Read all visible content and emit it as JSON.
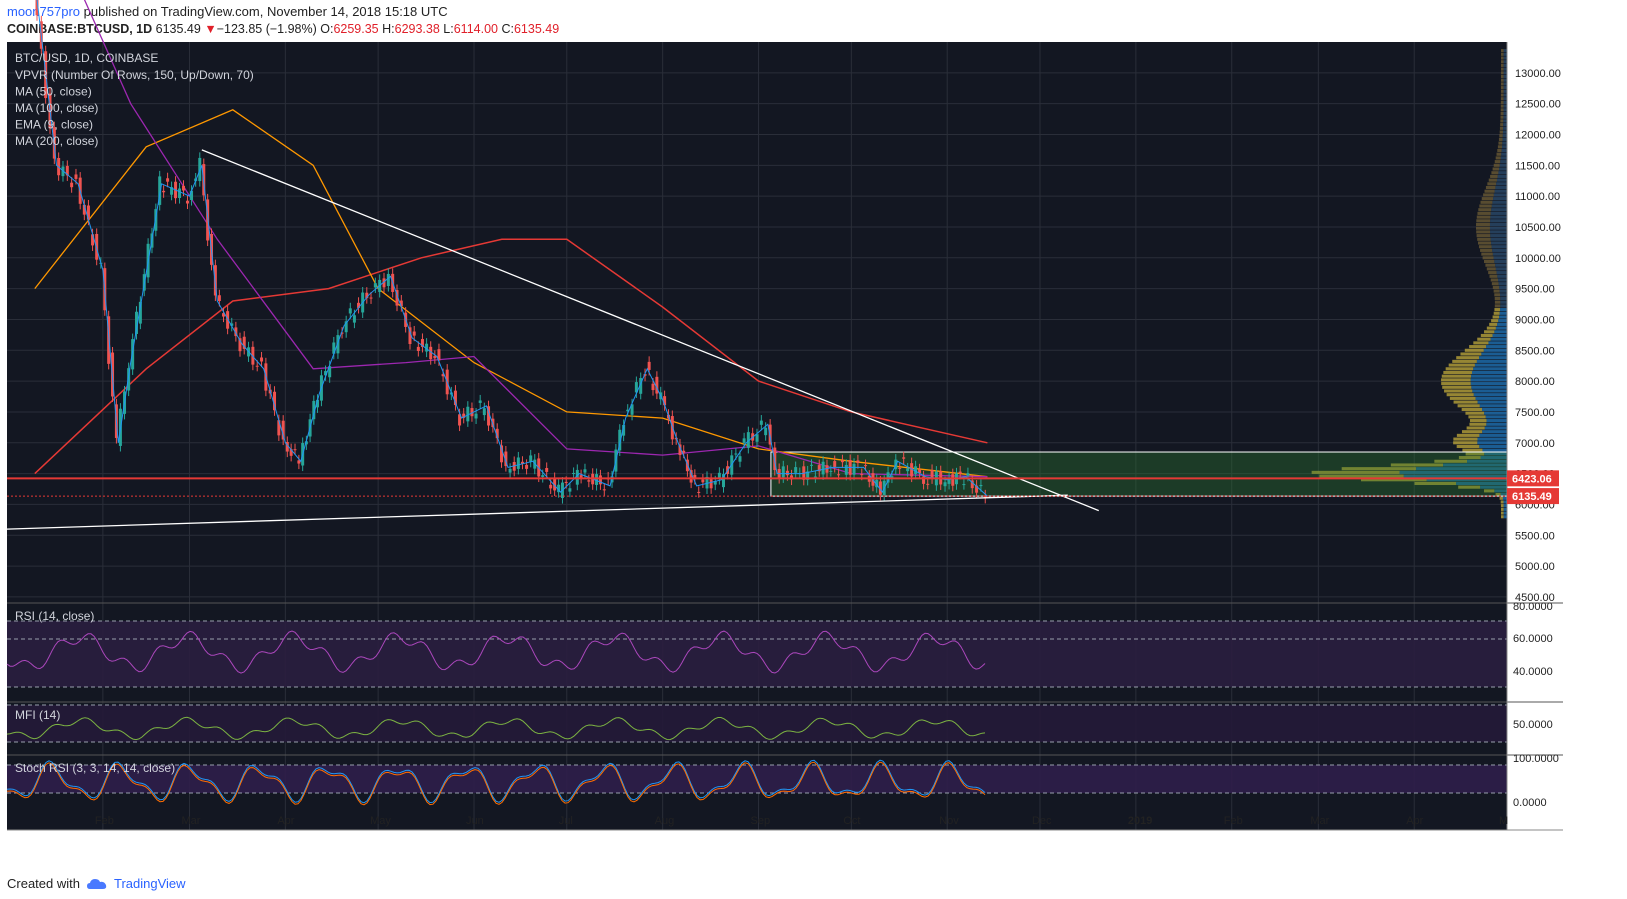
{
  "header": {
    "author": "moon757pro",
    "published_text": "published on TradingView.com, November 14, 2018 15:18 UTC",
    "symbol": "COINBASE:BTCUSD, 1D",
    "last": "6135.49",
    "change_arrow": "▼",
    "change": "−123.85 (−1.98%)",
    "o_label": "O:",
    "o_value": "6259.35",
    "h_label": "H:",
    "h_value": "6293.38",
    "l_label": "L:",
    "l_value": "6114.00",
    "c_label": "C:",
    "c_value": "6135.49"
  },
  "footer": {
    "created_with": "Created with",
    "brand": "TradingView",
    "logo_icon": "tradingview-cloud-icon"
  },
  "colors": {
    "background": "#131722",
    "grid": "#2a2e39",
    "up": "#26a69a",
    "down": "#ef5350",
    "ma50": "#2196f3",
    "ma100": "#ff9800",
    "ema9": "#2196f3",
    "ma200": "#e53935",
    "ma50_line": "#9c27b0"
  },
  "chart_data": {
    "type": "line",
    "title": "BTC/USD, 1D, COINBASE",
    "indicators": [
      "VPVR (Number Of Rows, 150, Up/Down, 70)",
      "MA (50, close)",
      "MA (100, close)",
      "EMA (9, close)",
      "MA (200, close)"
    ],
    "x_ticks": [
      "Feb",
      "Mar",
      "Apr",
      "May",
      "Jun",
      "Jul",
      "Aug",
      "Sep",
      "Oct",
      "Nov",
      "Dec",
      "2019",
      "Feb",
      "Mar",
      "Apr",
      "M"
    ],
    "y_ticks": [
      "13000.00",
      "12500.00",
      "12000.00",
      "11500.00",
      "11000.00",
      "10500.00",
      "10000.00",
      "9500.00",
      "9000.00",
      "8500.00",
      "8000.00",
      "7500.00",
      "7000.00",
      "6500.00",
      "6000.00",
      "5500.00",
      "5000.00",
      "4500.00"
    ],
    "ylim": [
      4450,
      13500
    ],
    "price_labels": [
      {
        "value": 6423.06,
        "text": "6423.06"
      },
      {
        "value": 6135.49,
        "text": "6135.49"
      }
    ],
    "price_series": {
      "name": "BTCUSD close (approx.)",
      "x": [
        "2018-01-10",
        "2018-01-17",
        "2018-01-24",
        "2018-02-01",
        "2018-02-06",
        "2018-02-10",
        "2018-02-20",
        "2018-03-01",
        "2018-03-05",
        "2018-03-10",
        "2018-03-18",
        "2018-03-25",
        "2018-04-01",
        "2018-04-06",
        "2018-04-12",
        "2018-04-20",
        "2018-04-28",
        "2018-05-05",
        "2018-05-12",
        "2018-05-20",
        "2018-05-28",
        "2018-06-05",
        "2018-06-12",
        "2018-06-20",
        "2018-06-29",
        "2018-07-05",
        "2018-07-15",
        "2018-07-20",
        "2018-07-27",
        "2018-08-01",
        "2018-08-06",
        "2018-08-12",
        "2018-08-20",
        "2018-08-28",
        "2018-09-04",
        "2018-09-07",
        "2018-09-15",
        "2018-09-25",
        "2018-10-05",
        "2018-10-11",
        "2018-10-16",
        "2018-10-25",
        "2018-11-01",
        "2018-11-07",
        "2018-11-14"
      ],
      "values": [
        14500,
        11500,
        11200,
        9800,
        7000,
        8300,
        11200,
        11000,
        11500,
        9300,
        8600,
        8200,
        7000,
        6700,
        7800,
        8900,
        9400,
        9700,
        8700,
        8400,
        7400,
        7600,
        6600,
        6700,
        6200,
        6500,
        6300,
        7400,
        8200,
        7700,
        7000,
        6300,
        6400,
        7000,
        7300,
        6500,
        6500,
        6600,
        6600,
        6200,
        6700,
        6450,
        6400,
        6450,
        6135
      ]
    },
    "ma200_series": {
      "name": "MA (200, close)",
      "x": [
        "2018-01-10",
        "2018-02-15",
        "2018-03-15",
        "2018-04-15",
        "2018-05-15",
        "2018-06-10",
        "2018-07-01",
        "2018-08-01",
        "2018-09-01",
        "2018-10-01",
        "2018-11-14"
      ],
      "values": [
        6500,
        8200,
        9300,
        9500,
        10000,
        10300,
        10300,
        9200,
        8000,
        7500,
        7000
      ]
    },
    "ma100_series": {
      "name": "MA (100, close)",
      "x": [
        "2018-01-10",
        "2018-02-15",
        "2018-03-15",
        "2018-04-10",
        "2018-05-01",
        "2018-06-01",
        "2018-07-01",
        "2018-08-01",
        "2018-09-01",
        "2018-10-01",
        "2018-11-14"
      ],
      "values": [
        9500,
        11800,
        12400,
        11500,
        9500,
        8300,
        7500,
        7400,
        6900,
        6700,
        6450
      ]
    },
    "ma50_series": {
      "name": "MA (50, close)",
      "x": [
        "2018-01-10",
        "2018-02-10",
        "2018-03-10",
        "2018-04-10",
        "2018-05-10",
        "2018-06-01",
        "2018-07-01",
        "2018-08-01",
        "2018-09-01",
        "2018-10-01",
        "2018-11-14"
      ],
      "values": [
        16000,
        12500,
        10300,
        8200,
        8300,
        8400,
        6900,
        6800,
        6950,
        6500,
        6450
      ]
    },
    "trendlines": [
      {
        "from": [
          "2018-03-05",
          11750
        ],
        "to": [
          "2018-12-20",
          5900
        ]
      },
      {
        "from": [
          "2018-01-01",
          5600
        ],
        "to": [
          "2018-12-10",
          6150
        ]
      }
    ],
    "range_box": {
      "from": "2018-09-05",
      "to": "2019-05-01",
      "low": 6135,
      "high": 6850
    },
    "rsi": {
      "label": "RSI (14, close)",
      "ticks": [
        "80.0000",
        "60.0000",
        "40.0000"
      ]
    },
    "mfi": {
      "label": "MFI (14)",
      "ticks": [
        "50.0000"
      ]
    },
    "stoch": {
      "label": "Stoch RSI (3, 3, 14, 14, close)",
      "ticks": [
        "100.0000",
        "0.0000"
      ]
    }
  }
}
